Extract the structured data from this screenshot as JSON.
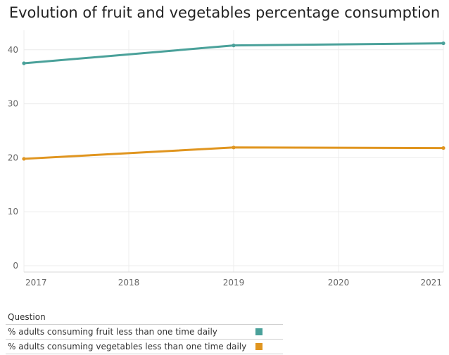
{
  "chart_data": {
    "type": "line",
    "title": "Evolution of fruit and vegetables percentage consumption",
    "xlabel": "",
    "ylabel": "",
    "x": [
      2017,
      2018,
      2019,
      2020,
      2021
    ],
    "x_ticks": [
      "2017",
      "2018",
      "2019",
      "2020",
      "2021"
    ],
    "y_ticks": [
      "0",
      "10",
      "20",
      "30",
      "40"
    ],
    "ylim": [
      0,
      40
    ],
    "grid": true,
    "series": [
      {
        "name": "% adults consuming fruit less than one time daily",
        "color": "#4aa19a",
        "points": [
          [
            2017,
            37.5
          ],
          [
            2019,
            40.8
          ],
          [
            2021,
            41.2
          ]
        ]
      },
      {
        "name": "% adults consuming vegetables less than one time daily",
        "color": "#e0951f",
        "points": [
          [
            2017,
            19.8
          ],
          [
            2019,
            21.9
          ],
          [
            2021,
            21.8
          ]
        ]
      }
    ]
  },
  "legend": {
    "title": "Question",
    "items": [
      {
        "label": "% adults consuming fruit less than one time daily",
        "color": "#4aa19a"
      },
      {
        "label": "% adults consuming vegetables less than one time daily",
        "color": "#e0951f"
      }
    ]
  }
}
